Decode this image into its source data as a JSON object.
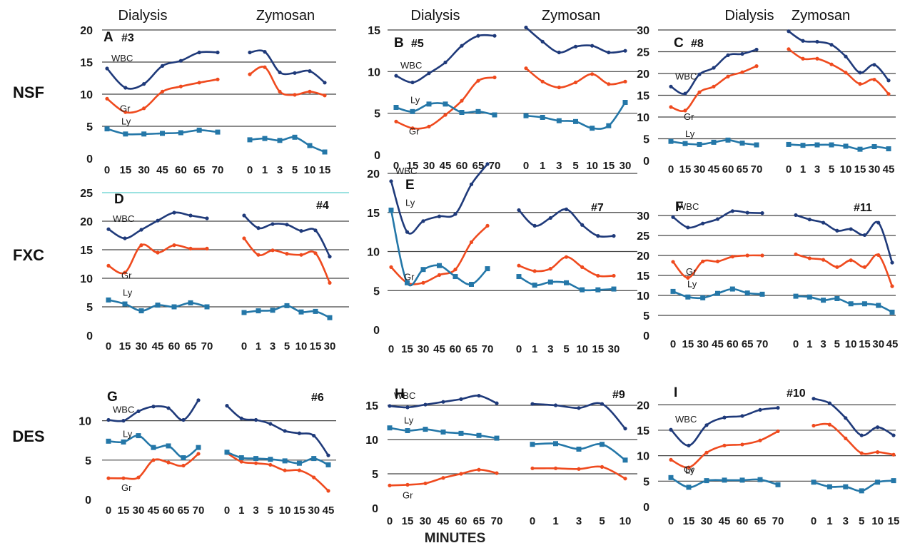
{
  "figure": {
    "xlabel": "MINUTES",
    "row_labels": [
      "NSF",
      "FXC",
      "DES"
    ],
    "section_labels": [
      "Dialysis",
      "Zymosan"
    ],
    "colors": {
      "WBC": "#1f3a7a",
      "Gr": "#ef4a1e",
      "Ly": "#2477a8",
      "grid": "#444444",
      "teal": "#5fd0cf"
    }
  },
  "chart_data": [
    {
      "type": "line",
      "title": "A",
      "subtitle": "#3",
      "row": "NSF",
      "section_titles": [
        "Dialysis",
        "Zymosan"
      ],
      "dialysis_x": [
        "0",
        "15",
        "30",
        "45",
        "60",
        "65",
        "70"
      ],
      "zymosan_x": [
        "0",
        "1",
        "3",
        "5",
        "10",
        "15"
      ],
      "ylim": [
        0,
        20
      ],
      "yticks": [
        0,
        5,
        10,
        15,
        20
      ],
      "series": [
        {
          "name": "WBC",
          "dialysis": [
            14,
            11,
            11.6,
            14.4,
            15.2,
            16.5,
            16.5
          ],
          "zymosan": [
            16.5,
            16.6,
            13.4,
            13.3,
            13.6,
            11.8
          ]
        },
        {
          "name": "Gr",
          "dialysis": [
            9.3,
            7.2,
            7.8,
            10.4,
            11.2,
            11.8,
            12.3
          ],
          "zymosan": [
            13.1,
            14.2,
            10.4,
            9.9,
            10.4,
            9.8
          ]
        },
        {
          "name": "Ly",
          "dialysis": [
            4.6,
            3.8,
            3.8,
            3.9,
            4,
            4.4,
            4.1
          ],
          "zymosan": [
            2.9,
            3.1,
            2.8,
            3.3,
            2,
            1
          ]
        }
      ]
    },
    {
      "type": "line",
      "title": "B",
      "subtitle": "#5",
      "row": "NSF",
      "section_titles": [
        "Dialysis",
        "Zymosan"
      ],
      "dialysis_x": [
        "0",
        "15",
        "30",
        "45",
        "60",
        "65",
        "70"
      ],
      "zymosan_x": [
        "0",
        "1",
        "3",
        "5",
        "10",
        "15",
        "30"
      ],
      "ylim": [
        0,
        15
      ],
      "yticks": [
        0,
        5,
        10,
        15
      ],
      "series": [
        {
          "name": "WBC",
          "dialysis": [
            9.5,
            8.7,
            9.8,
            11.1,
            13.1,
            14.3,
            14.3
          ],
          "zymosan": [
            15.3,
            13.6,
            12.3,
            13,
            13.1,
            12.3,
            12.5
          ]
        },
        {
          "name": "Gr",
          "dialysis": [
            4,
            3.2,
            3.4,
            4.8,
            6.5,
            8.9,
            9.3
          ],
          "zymosan": [
            10.4,
            8.8,
            8.1,
            8.7,
            9.7,
            8.5,
            8.8
          ]
        },
        {
          "name": "Ly",
          "dialysis": [
            5.7,
            5.2,
            6.1,
            6.1,
            5.1,
            5.2,
            4.8
          ],
          "zymosan": [
            4.7,
            4.5,
            4.1,
            4,
            3.2,
            3.5,
            6.3
          ]
        }
      ]
    },
    {
      "type": "line",
      "title": "C",
      "subtitle": "#8",
      "row": "NSF",
      "section_titles": [
        "Dialysis",
        "Zymosan"
      ],
      "dialysis_x": [
        "0",
        "15",
        "30",
        "45",
        "60",
        "65",
        "70"
      ],
      "zymosan_x": [
        "0",
        "1",
        "3",
        "5",
        "10",
        "15",
        "30",
        "45"
      ],
      "ylim": [
        0,
        30
      ],
      "yticks": [
        0,
        5,
        10,
        15,
        20,
        25,
        30
      ],
      "series": [
        {
          "name": "WBC",
          "dialysis": [
            17,
            15.4,
            19.8,
            21.3,
            24.2,
            24.5,
            25.5
          ],
          "zymosan": [
            29.7,
            27.5,
            27.3,
            26.6,
            23.9,
            20.2,
            22,
            18.4
          ]
        },
        {
          "name": "Gr",
          "dialysis": [
            12.3,
            11.5,
            15.7,
            17,
            19.3,
            20.3,
            21.7
          ],
          "zymosan": [
            25.6,
            23.4,
            23.4,
            22.1,
            20.2,
            17.6,
            18.6,
            15.3
          ]
        },
        {
          "name": "Ly",
          "dialysis": [
            4.4,
            3.9,
            3.7,
            4.2,
            4.7,
            4,
            3.6
          ],
          "zymosan": [
            3.7,
            3.5,
            3.6,
            3.6,
            3.3,
            2.6,
            3.2,
            2.7
          ]
        }
      ]
    },
    {
      "type": "line",
      "title": "D",
      "subtitle": "#4",
      "row": "FXC",
      "section_titles": [],
      "dialysis_x": [
        "0",
        "15",
        "30",
        "45",
        "60",
        "65",
        "70"
      ],
      "zymosan_x": [
        "0",
        "1",
        "3",
        "5",
        "10",
        "15",
        "30"
      ],
      "ylim": [
        0,
        25
      ],
      "yticks": [
        0,
        5,
        10,
        15,
        20,
        25
      ],
      "series": [
        {
          "name": "WBC",
          "dialysis": [
            18.6,
            17,
            18.5,
            20.1,
            21.5,
            21,
            20.5
          ],
          "zymosan": [
            21,
            18.8,
            19.5,
            19.4,
            18.3,
            18.4,
            13.8
          ]
        },
        {
          "name": "Gr",
          "dialysis": [
            12.2,
            11,
            15.8,
            14.5,
            15.8,
            15.2,
            15.2
          ],
          "zymosan": [
            17,
            14.1,
            14.9,
            14.3,
            14.1,
            14.4,
            9.2
          ]
        },
        {
          "name": "Ly",
          "dialysis": [
            6.2,
            5.5,
            4.3,
            5.3,
            5,
            5.7,
            5
          ],
          "zymosan": [
            4,
            4.3,
            4.4,
            5.2,
            4.1,
            4.2,
            3.1
          ]
        }
      ]
    },
    {
      "type": "line",
      "title": "E",
      "subtitle": "#7",
      "row": "FXC",
      "section_titles": [],
      "dialysis_x": [
        "0",
        "15",
        "30",
        "45",
        "60",
        "65",
        "70"
      ],
      "zymosan_x": [
        "0",
        "1",
        "3",
        "5",
        "10",
        "15",
        "30"
      ],
      "ylim": [
        0,
        20
      ],
      "yticks": [
        0,
        5,
        10,
        15,
        20
      ],
      "series": [
        {
          "name": "WBC",
          "dialysis": [
            19,
            12.5,
            13.9,
            14.5,
            14.8,
            18.6,
            21.2
          ],
          "zymosan": [
            15.3,
            13.3,
            14.3,
            15.4,
            13.4,
            12,
            12
          ]
        },
        {
          "name": "Gr",
          "dialysis": [
            8,
            6,
            6,
            7,
            7.7,
            11.2,
            13.3
          ],
          "zymosan": [
            8.2,
            7.5,
            7.8,
            9.3,
            8,
            6.9,
            6.9
          ]
        },
        {
          "name": "Ly",
          "dialysis": [
            15.3,
            6,
            7.7,
            8.2,
            6.8,
            5.8,
            7.8
          ],
          "zymosan": [
            6.8,
            5.7,
            6.1,
            6,
            5.1,
            5.1,
            5.2
          ]
        }
      ]
    },
    {
      "type": "line",
      "title": "F",
      "subtitle": "#11",
      "row": "FXC",
      "section_titles": [],
      "dialysis_x": [
        "0",
        "15",
        "30",
        "45",
        "60",
        "65",
        "70"
      ],
      "zymosan_x": [
        "0",
        "1",
        "3",
        "5",
        "10",
        "15",
        "30",
        "45"
      ],
      "ylim": [
        0,
        30
      ],
      "yticks": [
        0,
        5,
        10,
        15,
        20,
        25,
        30
      ],
      "series": [
        {
          "name": "WBC",
          "dialysis": [
            29.6,
            27,
            28,
            29.1,
            31.1,
            30.7,
            30.6
          ],
          "zymosan": [
            30.1,
            29,
            28.2,
            26.2,
            26.6,
            25.1,
            28.2,
            18.2
          ]
        },
        {
          "name": "Gr",
          "dialysis": [
            18.4,
            14.4,
            18.5,
            18.5,
            19.7,
            20,
            20
          ],
          "zymosan": [
            20.3,
            19.3,
            18.9,
            17.1,
            18.8,
            17.1,
            20.1,
            12.3
          ]
        },
        {
          "name": "Ly",
          "dialysis": [
            11,
            9.6,
            9.4,
            10.5,
            11.6,
            10.6,
            10.3
          ],
          "zymosan": [
            9.8,
            9.6,
            8.8,
            9.2,
            7.9,
            7.9,
            7.5,
            5.8
          ]
        }
      ]
    },
    {
      "type": "line",
      "title": "G",
      "subtitle": "#6",
      "row": "DES",
      "section_titles": [],
      "dialysis_x": [
        "0",
        "15",
        "30",
        "45",
        "60",
        "65",
        "70"
      ],
      "zymosan_x": [
        "0",
        "1",
        "3",
        "5",
        "10",
        "15",
        "30",
        "45"
      ],
      "ylim": [
        0,
        12.5
      ],
      "yticks": [
        0,
        5,
        10
      ],
      "series": [
        {
          "name": "WBC",
          "dialysis": [
            10.1,
            10,
            11.2,
            11.8,
            11.6,
            10.1,
            12.6
          ],
          "zymosan": [
            11.9,
            10.3,
            10.1,
            9.6,
            8.7,
            8.4,
            8.1,
            5.6
          ]
        },
        {
          "name": "Gr",
          "dialysis": [
            2.7,
            2.7,
            2.8,
            5,
            4.7,
            4.3,
            5.8
          ],
          "zymosan": [
            5.9,
            4.8,
            4.6,
            4.4,
            3.7,
            3.7,
            2.8,
            1.1
          ]
        },
        {
          "name": "Ly",
          "dialysis": [
            7.4,
            7.3,
            8.1,
            6.6,
            6.8,
            5.3,
            6.6
          ],
          "zymosan": [
            6,
            5.3,
            5.2,
            5.1,
            4.9,
            4.6,
            5.2,
            4.4
          ]
        }
      ]
    },
    {
      "type": "line",
      "title": "H",
      "subtitle": "#9",
      "row": "DES",
      "section_titles": [],
      "dialysis_x": [
        "0",
        "15",
        "30",
        "45",
        "60",
        "65",
        "70"
      ],
      "zymosan_x": [
        "0",
        "1",
        "3",
        "5",
        "10"
      ],
      "ylim": [
        0,
        17.5
      ],
      "yticks": [
        0,
        5,
        10,
        15
      ],
      "series": [
        {
          "name": "WBC",
          "dialysis": [
            14.9,
            14.7,
            15.1,
            15.5,
            15.9,
            16.4,
            15.3
          ],
          "zymosan": [
            15.2,
            15,
            14.6,
            15.2,
            11.6
          ]
        },
        {
          "name": "Gr",
          "dialysis": [
            3.3,
            3.4,
            3.6,
            4.4,
            5,
            5.6,
            5.1
          ],
          "zymosan": [
            5.8,
            5.8,
            5.7,
            6,
            4.3
          ]
        },
        {
          "name": "Ly",
          "dialysis": [
            11.7,
            11.3,
            11.5,
            11.1,
            10.9,
            10.6,
            10.2
          ],
          "zymosan": [
            9.3,
            9.4,
            8.6,
            9.3,
            7
          ]
        }
      ]
    },
    {
      "type": "line",
      "title": "I",
      "subtitle": "#10",
      "row": "DES",
      "section_titles": [],
      "dialysis_x": [
        "0",
        "15",
        "30",
        "45",
        "60",
        "65",
        "70"
      ],
      "zymosan_x": [
        "0",
        "1",
        "3",
        "5",
        "10",
        "15"
      ],
      "ylim": [
        0,
        22
      ],
      "yticks": [
        0,
        5,
        10,
        15,
        20
      ],
      "series": [
        {
          "name": "WBC",
          "dialysis": [
            15.1,
            12,
            16,
            17.5,
            17.8,
            19,
            19.4
          ],
          "zymosan": [
            21.2,
            20.3,
            17.4,
            14,
            15.6,
            14
          ]
        },
        {
          "name": "Gr",
          "dialysis": [
            9.2,
            7.7,
            10.6,
            12,
            12.2,
            13,
            14.8
          ],
          "zymosan": [
            15.9,
            16.1,
            13.4,
            10.5,
            10.7,
            10.2
          ]
        },
        {
          "name": "Ly",
          "dialysis": [
            5.7,
            3.8,
            5.1,
            5.2,
            5.2,
            5.3,
            4.3
          ],
          "zymosan": [
            4.8,
            3.9,
            3.9,
            3.1,
            4.8,
            5.1
          ]
        }
      ]
    }
  ]
}
